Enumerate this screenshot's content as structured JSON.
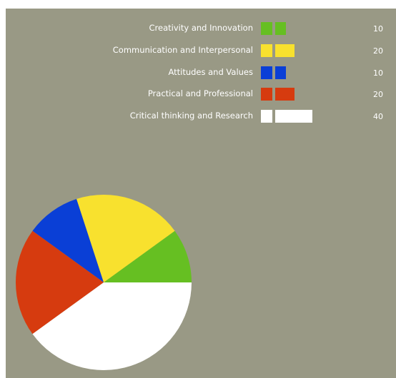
{
  "chart_data": {
    "type": "pie",
    "categories": [
      "Creativity and Innovation",
      "Communication and Interpersonal",
      "Attitudes and Values",
      "Practical and Professional",
      "Critical thinking and Research"
    ],
    "values": [
      10,
      20,
      10,
      20,
      40
    ],
    "value_labels": [
      "10",
      "20",
      "10",
      "20",
      "40"
    ],
    "colors": [
      "#66bf22",
      "#f8e12e",
      "#0a3fd6",
      "#d63b0f",
      "#ffffff"
    ],
    "legend_position": "top",
    "start_angle_deg": 0,
    "direction": "counterclockwise"
  },
  "colors": {
    "background": "#999985",
    "text": "#ffffff"
  }
}
